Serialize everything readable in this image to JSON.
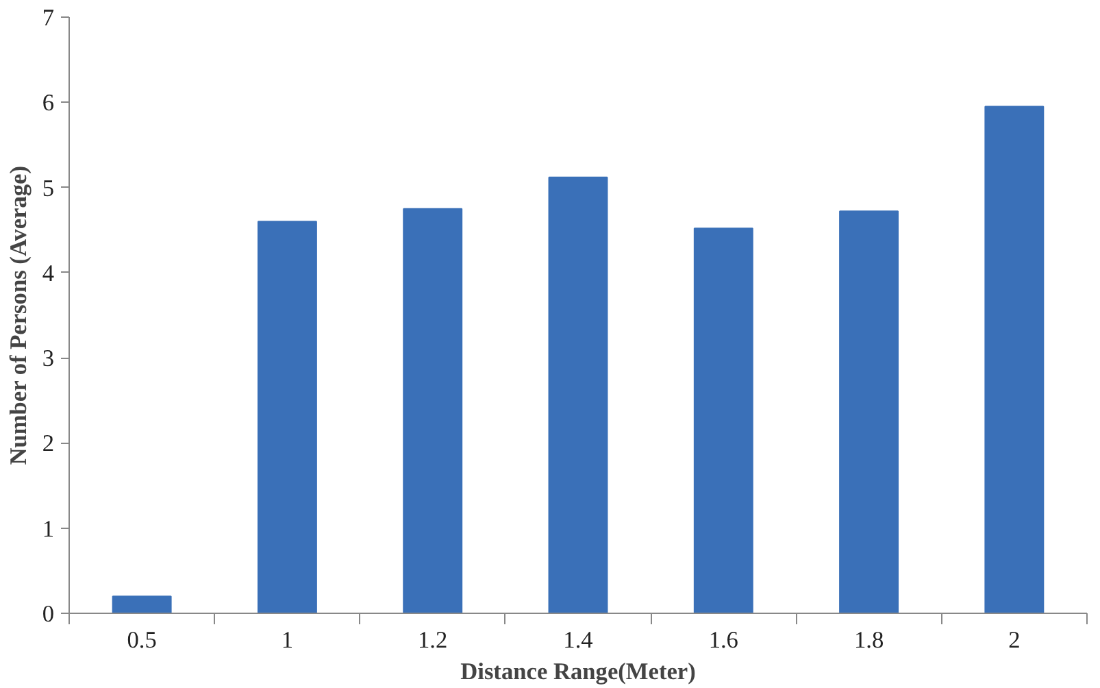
{
  "chart_data": {
    "type": "bar",
    "xlabel": "Distance Range(Meter)",
    "ylabel": "Number of Persons (Average)",
    "categories": [
      "0.5",
      "1",
      "1.2",
      "1.4",
      "1.6",
      "1.8",
      "2"
    ],
    "values": [
      0.2,
      4.6,
      4.75,
      5.12,
      4.52,
      4.72,
      5.95
    ],
    "color": "#3a70b8",
    "ylim": [
      0,
      7
    ],
    "yticks": [
      0,
      1,
      2,
      3,
      4,
      5,
      6,
      7
    ],
    "grid": false
  }
}
